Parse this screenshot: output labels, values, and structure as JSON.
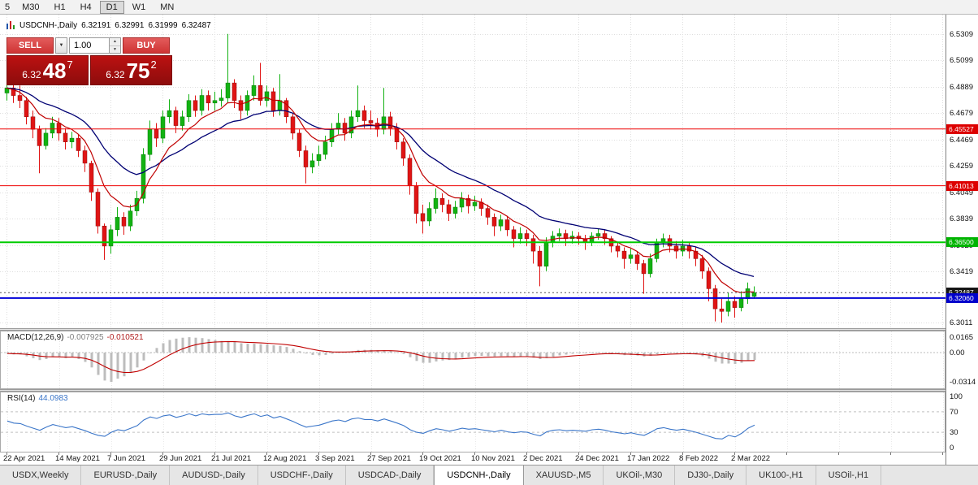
{
  "toolbar": {
    "periods": [
      "5",
      "M30",
      "H1",
      "H4",
      "D1",
      "W1",
      "MN"
    ],
    "active": "D1"
  },
  "quote": {
    "symbol": "USDCNH-,Daily",
    "open": "6.32191",
    "high": "6.32991",
    "low": "6.31999",
    "close": "6.32487"
  },
  "icons": {
    "dropdown": "▼",
    "spin_up": "▲",
    "spin_down": "▼"
  },
  "trade_panel": {
    "sell_label": "SELL",
    "buy_label": "BUY",
    "volume": "1.00",
    "sell_price": {
      "head": "6.32",
      "big": "48",
      "sup": "7"
    },
    "buy_price": {
      "head": "6.32",
      "big": "75",
      "sup": "2"
    }
  },
  "price_scale": {
    "grid_labels": [
      "6.5309",
      "6.5099",
      "6.4889",
      "6.4679",
      "6.4469",
      "6.4259",
      "6.4049",
      "6.3839",
      "6.3629",
      "6.3419",
      "6.3209",
      "6.3011"
    ],
    "badges": [
      {
        "text": "6.45527",
        "price": 6.45527,
        "color": "#dd0000"
      },
      {
        "text": "6.41013",
        "price": 6.41013,
        "color": "#dd0000"
      },
      {
        "text": "6.36500",
        "price": 6.365,
        "color": "#00b400"
      },
      {
        "text": "6.32487",
        "price": 6.32487,
        "color": "#151515"
      },
      {
        "text": "6.32060",
        "price": 6.3206,
        "color": "#0000cc"
      }
    ]
  },
  "chart_data": {
    "type": "candlestick",
    "title": "USDCNH-,Daily",
    "price_range": {
      "top": 6.5309,
      "bottom": 6.3011
    },
    "grid_prices": [
      6.5309,
      6.5099,
      6.4889,
      6.4679,
      6.4469,
      6.4259,
      6.4049,
      6.3839,
      6.3629,
      6.3419,
      6.3209,
      6.3011
    ],
    "x_labels": [
      "22 Apr 2021",
      "14 May 2021",
      "7 Jun 2021",
      "29 Jun 2021",
      "21 Jul 2021",
      "12 Aug 2021",
      "3 Sep 2021",
      "27 Sep 2021",
      "19 Oct 2021",
      "10 Nov 2021",
      "2 Dec 2021",
      "24 Dec 2021",
      "17 Jan 2022",
      "8 Feb 2022",
      "2 Mar 2022"
    ],
    "bull_color": "#12b212",
    "bear_color": "#e01414",
    "ma_fast": {
      "period": 8,
      "color": "#c00000"
    },
    "ma_slow": {
      "period": 20,
      "color": "#000073"
    },
    "bid_price": 6.32487,
    "hlines": [
      {
        "price": 6.45527,
        "color": "#ee0000",
        "width": 1
      },
      {
        "price": 6.41013,
        "color": "#ee0000",
        "width": 1
      },
      {
        "price": 6.365,
        "color": "#00cc00",
        "width": 2
      },
      {
        "price": 6.3206,
        "color": "#0000d8",
        "width": 2
      }
    ],
    "candles": [
      [
        6.484,
        6.496,
        6.478,
        6.488
      ],
      [
        6.488,
        6.492,
        6.476,
        6.482
      ],
      [
        6.482,
        6.49,
        6.472,
        6.478
      ],
      [
        6.478,
        6.481,
        6.459,
        6.465
      ],
      [
        6.465,
        6.47,
        6.448,
        6.455
      ],
      [
        6.455,
        6.458,
        6.42,
        6.442
      ],
      [
        6.442,
        6.456,
        6.439,
        6.452
      ],
      [
        6.452,
        6.465,
        6.448,
        6.46
      ],
      [
        6.46,
        6.464,
        6.446,
        6.452
      ],
      [
        6.452,
        6.456,
        6.439,
        6.445
      ],
      [
        6.445,
        6.453,
        6.44,
        6.448
      ],
      [
        6.448,
        6.451,
        6.433,
        6.438
      ],
      [
        6.438,
        6.442,
        6.421,
        6.428
      ],
      [
        6.428,
        6.43,
        6.398,
        6.405
      ],
      [
        6.405,
        6.408,
        6.372,
        6.378
      ],
      [
        6.378,
        6.38,
        6.351,
        6.362
      ],
      [
        6.362,
        6.379,
        6.356,
        6.375
      ],
      [
        6.375,
        6.393,
        6.37,
        6.385
      ],
      [
        6.385,
        6.389,
        6.371,
        6.378
      ],
      [
        6.378,
        6.395,
        6.374,
        6.39
      ],
      [
        6.39,
        6.406,
        6.386,
        6.4
      ],
      [
        6.4,
        6.44,
        6.396,
        6.435
      ],
      [
        6.435,
        6.462,
        6.43,
        6.455
      ],
      [
        6.455,
        6.46,
        6.441,
        6.448
      ],
      [
        6.448,
        6.47,
        6.444,
        6.465
      ],
      [
        6.465,
        6.479,
        6.46,
        6.47
      ],
      [
        6.47,
        6.473,
        6.452,
        6.458
      ],
      [
        6.458,
        6.47,
        6.454,
        6.465
      ],
      [
        6.465,
        6.483,
        6.461,
        6.478
      ],
      [
        6.478,
        6.482,
        6.465,
        6.47
      ],
      [
        6.47,
        6.487,
        6.466,
        6.482
      ],
      [
        6.482,
        6.486,
        6.47,
        6.476
      ],
      [
        6.476,
        6.485,
        6.47,
        6.478
      ],
      [
        6.478,
        6.487,
        6.473,
        6.48
      ],
      [
        6.48,
        6.531,
        6.476,
        6.492
      ],
      [
        6.492,
        6.495,
        6.472,
        6.478
      ],
      [
        6.478,
        6.482,
        6.463,
        6.47
      ],
      [
        6.47,
        6.486,
        6.466,
        6.482
      ],
      [
        6.482,
        6.498,
        6.478,
        6.49
      ],
      [
        6.49,
        6.508,
        6.474,
        6.478
      ],
      [
        6.478,
        6.49,
        6.473,
        6.485
      ],
      [
        6.485,
        6.488,
        6.465,
        6.47
      ],
      [
        6.47,
        6.499,
        6.466,
        6.478
      ],
      [
        6.478,
        6.48,
        6.46,
        6.465
      ],
      [
        6.465,
        6.468,
        6.447,
        6.452
      ],
      [
        6.452,
        6.455,
        6.433,
        6.438
      ],
      [
        6.438,
        6.442,
        6.412,
        6.425
      ],
      [
        6.425,
        6.436,
        6.42,
        6.43
      ],
      [
        6.43,
        6.442,
        6.426,
        6.435
      ],
      [
        6.435,
        6.45,
        6.431,
        6.445
      ],
      [
        6.445,
        6.46,
        6.441,
        6.455
      ],
      [
        6.455,
        6.468,
        6.451,
        6.46
      ],
      [
        6.46,
        6.464,
        6.446,
        6.452
      ],
      [
        6.452,
        6.47,
        6.448,
        6.465
      ],
      [
        6.465,
        6.49,
        6.461,
        6.47
      ],
      [
        6.47,
        6.474,
        6.456,
        6.462
      ],
      [
        6.462,
        6.47,
        6.455,
        6.46
      ],
      [
        6.46,
        6.464,
        6.449,
        6.455
      ],
      [
        6.455,
        6.488,
        6.451,
        6.465
      ],
      [
        6.465,
        6.469,
        6.45,
        6.456
      ],
      [
        6.456,
        6.46,
        6.439,
        6.445
      ],
      [
        6.445,
        6.448,
        6.426,
        6.432
      ],
      [
        6.432,
        6.435,
        6.403,
        6.41
      ],
      [
        6.41,
        6.413,
        6.38,
        6.388
      ],
      [
        6.388,
        6.395,
        6.372,
        6.382
      ],
      [
        6.382,
        6.397,
        6.378,
        6.392
      ],
      [
        6.392,
        6.408,
        6.388,
        6.4
      ],
      [
        6.4,
        6.404,
        6.389,
        6.395
      ],
      [
        6.395,
        6.399,
        6.382,
        6.388
      ],
      [
        6.388,
        6.398,
        6.384,
        6.393
      ],
      [
        6.393,
        6.405,
        6.389,
        6.4
      ],
      [
        6.4,
        6.403,
        6.388,
        6.394
      ],
      [
        6.394,
        6.402,
        6.39,
        6.397
      ],
      [
        6.397,
        6.4,
        6.386,
        6.392
      ],
      [
        6.392,
        6.395,
        6.379,
        6.385
      ],
      [
        6.385,
        6.388,
        6.37,
        6.378
      ],
      [
        6.378,
        6.387,
        6.374,
        6.383
      ],
      [
        6.383,
        6.386,
        6.37,
        6.375
      ],
      [
        6.375,
        6.378,
        6.361,
        6.368
      ],
      [
        6.368,
        6.377,
        6.364,
        6.372
      ],
      [
        6.372,
        6.375,
        6.362,
        6.368
      ],
      [
        6.368,
        6.371,
        6.348,
        6.358
      ],
      [
        6.358,
        6.362,
        6.33,
        6.346
      ],
      [
        6.346,
        6.369,
        6.342,
        6.365
      ],
      [
        6.365,
        6.374,
        6.361,
        6.37
      ],
      [
        6.37,
        6.376,
        6.366,
        6.372
      ],
      [
        6.372,
        6.375,
        6.362,
        6.368
      ],
      [
        6.368,
        6.374,
        6.364,
        6.37
      ],
      [
        6.37,
        6.373,
        6.363,
        6.368
      ],
      [
        6.368,
        6.371,
        6.359,
        6.365
      ],
      [
        6.365,
        6.373,
        6.362,
        6.37
      ],
      [
        6.37,
        6.376,
        6.367,
        6.372
      ],
      [
        6.372,
        6.375,
        6.363,
        6.368
      ],
      [
        6.368,
        6.37,
        6.357,
        6.362
      ],
      [
        6.362,
        6.365,
        6.353,
        6.358
      ],
      [
        6.358,
        6.361,
        6.344,
        6.352
      ],
      [
        6.352,
        6.36,
        6.348,
        6.355
      ],
      [
        6.355,
        6.358,
        6.343,
        6.348
      ],
      [
        6.348,
        6.351,
        6.324,
        6.34
      ],
      [
        6.34,
        6.356,
        6.337,
        6.352
      ],
      [
        6.352,
        6.368,
        6.349,
        6.365
      ],
      [
        6.365,
        6.372,
        6.361,
        6.368
      ],
      [
        6.368,
        6.371,
        6.357,
        6.362
      ],
      [
        6.362,
        6.366,
        6.352,
        6.358
      ],
      [
        6.358,
        6.367,
        6.354,
        6.362
      ],
      [
        6.362,
        6.365,
        6.352,
        6.358
      ],
      [
        6.358,
        6.361,
        6.346,
        6.352
      ],
      [
        6.352,
        6.355,
        6.336,
        6.342
      ],
      [
        6.342,
        6.345,
        6.318,
        6.328
      ],
      [
        6.328,
        6.331,
        6.302,
        6.312
      ],
      [
        6.312,
        6.32,
        6.3011,
        6.31
      ],
      [
        6.31,
        6.325,
        6.306,
        6.318
      ],
      [
        6.318,
        6.322,
        6.305,
        6.313
      ],
      [
        6.313,
        6.326,
        6.31,
        6.32
      ],
      [
        6.32,
        6.333,
        6.316,
        6.328
      ],
      [
        6.3219,
        6.3299,
        6.32,
        6.3249
      ]
    ],
    "indicators": [
      {
        "type": "MACD",
        "label": "MACD(12,26,9)",
        "value_main": "-0.007925",
        "value_signal": "-0.010521",
        "scale_labels": [
          "0.0165",
          "0.00",
          "-0.0314"
        ],
        "histogram_color": "#bdbdbd",
        "signal_color": "#c00000",
        "signal_period": 9,
        "histogram": [
          -0.001,
          -0.002,
          -0.002,
          -0.004,
          -0.006,
          -0.008,
          -0.007,
          -0.005,
          -0.005,
          -0.006,
          -0.005,
          -0.007,
          -0.01,
          -0.016,
          -0.024,
          -0.03,
          -0.0314,
          -0.028,
          -0.0255,
          -0.021,
          -0.016,
          -0.0085,
          0.0,
          0.005,
          0.01,
          0.0135,
          0.015,
          0.016,
          0.0165,
          0.016,
          0.0155,
          0.0145,
          0.0135,
          0.0125,
          0.0125,
          0.0115,
          0.01,
          0.0095,
          0.0095,
          0.009,
          0.0088,
          0.0078,
          0.0072,
          0.006,
          0.004,
          0.0015,
          -0.001,
          -0.0025,
          -0.003,
          -0.0025,
          -0.0012,
          0.0002,
          0.0005,
          0.0015,
          0.0028,
          0.003,
          0.003,
          0.0024,
          0.0024,
          0.0018,
          0.0005,
          -0.0015,
          -0.005,
          -0.009,
          -0.011,
          -0.011,
          -0.0095,
          -0.0085,
          -0.008,
          -0.007,
          -0.0055,
          -0.0048,
          -0.0038,
          -0.0035,
          -0.0038,
          -0.0042,
          -0.0038,
          -0.004,
          -0.0045,
          -0.004,
          -0.0042,
          -0.0055,
          -0.007,
          -0.006,
          -0.0045,
          -0.003,
          -0.0022,
          -0.0012,
          -0.0008,
          -0.0008,
          -0.0002,
          0.0005,
          0.0002,
          -0.0008,
          -0.0018,
          -0.0028,
          -0.0028,
          -0.0032,
          -0.0042,
          -0.0035,
          -0.0018,
          -0.0002,
          -0.0002,
          -0.0008,
          -0.0005,
          -0.001,
          -0.002,
          -0.0038,
          -0.0065,
          -0.0098,
          -0.0118,
          -0.0118,
          -0.0122,
          -0.011,
          -0.009,
          -0.0079
        ]
      },
      {
        "type": "RSI",
        "label": "RSI(14)",
        "value": "44.0983",
        "scale_labels": [
          "100",
          "70",
          "30",
          "0"
        ],
        "levels": [
          70,
          30
        ],
        "line_color": "#3b76c9",
        "values": [
          52,
          48,
          47,
          42,
          38,
          34,
          40,
          45,
          42,
          39,
          41,
          37,
          33,
          28,
          24,
          22,
          30,
          35,
          33,
          38,
          43,
          54,
          60,
          57,
          62,
          64,
          59,
          62,
          66,
          62,
          66,
          64,
          65,
          65,
          68,
          62,
          59,
          63,
          66,
          61,
          64,
          58,
          61,
          56,
          51,
          45,
          40,
          42,
          44,
          48,
          52,
          54,
          51,
          56,
          58,
          55,
          55,
          52,
          56,
          52,
          48,
          43,
          35,
          30,
          28,
          33,
          37,
          35,
          32,
          35,
          38,
          36,
          37,
          35,
          33,
          31,
          34,
          31,
          29,
          31,
          30,
          26,
          23,
          31,
          34,
          35,
          33,
          34,
          33,
          32,
          35,
          36,
          34,
          31,
          29,
          27,
          29,
          26,
          24,
          30,
          37,
          39,
          36,
          34,
          36,
          33,
          30,
          26,
          22,
          18,
          17,
          24,
          21,
          28,
          38,
          44
        ]
      }
    ]
  },
  "tabs": {
    "active_index": 5,
    "items": [
      "USDX,Weekly",
      "EURUSD-,Daily",
      "AUDUSD-,Daily",
      "USDCHF-,Daily",
      "USDCAD-,Daily",
      "USDCNH-,Daily",
      "XAUUSD-,M5",
      "UKOil-,M30",
      "DJ30-,Daily",
      "UK100-,H1",
      "USOil-,H1"
    ]
  }
}
